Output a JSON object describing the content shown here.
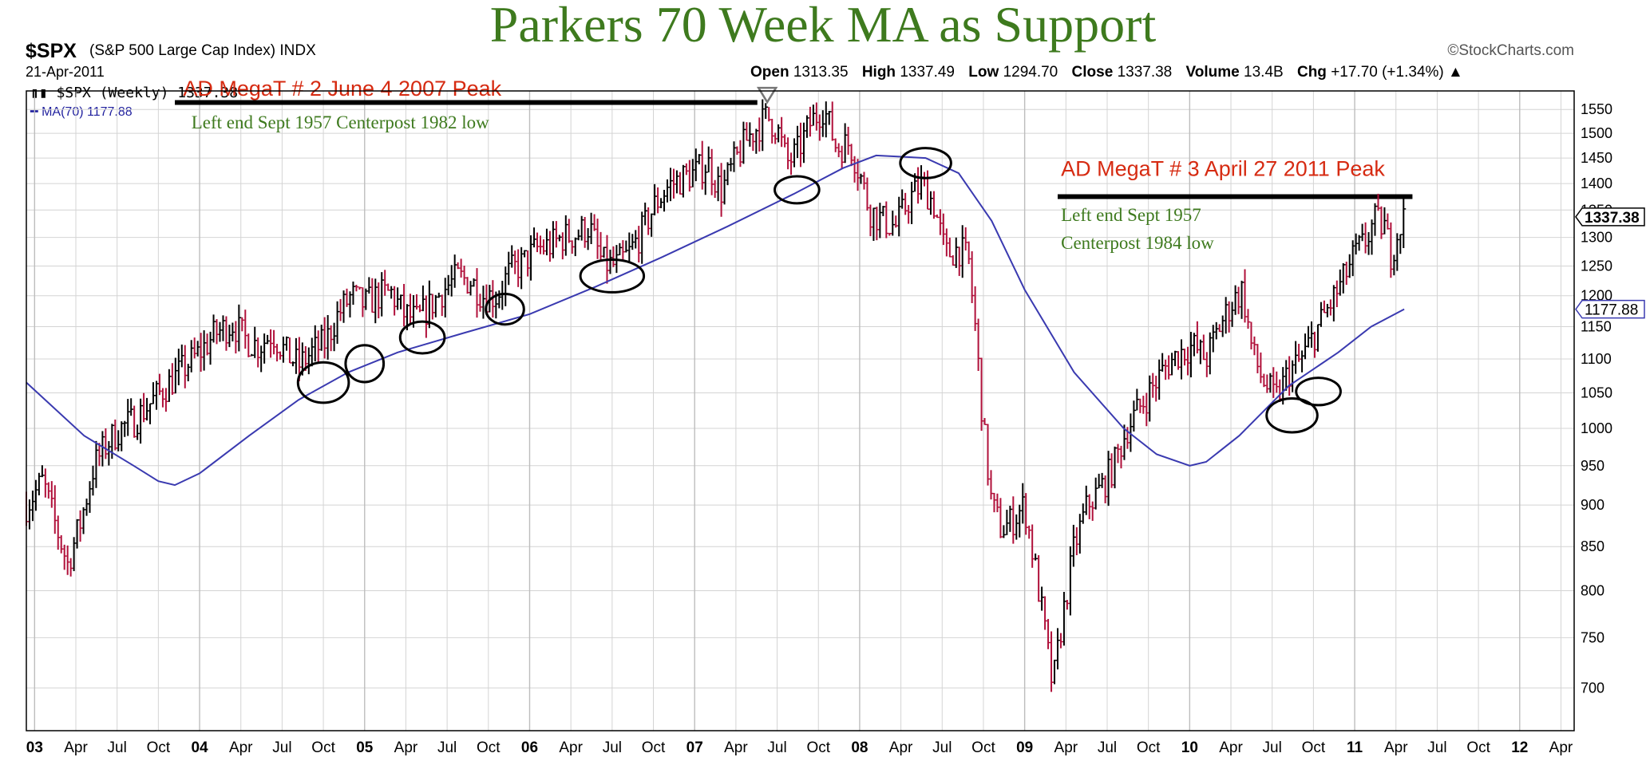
{
  "header": {
    "symbol": "$SPX",
    "name": "(S&P 500 Large Cap Index) INDX",
    "date": "21-Apr-2011",
    "brand": "©StockCharts.com",
    "open_label": "Open",
    "open": "1313.35",
    "high_label": "High",
    "high": "1337.49",
    "low_label": "Low",
    "low": "1294.70",
    "close_label": "Close",
    "close": "1337.38",
    "volume_label": "Volume",
    "volume": "13.4B",
    "chg_label": "Chg",
    "chg": "+17.70 (+1.34%)"
  },
  "legend": {
    "price": "$SPX (Weekly) 1337.38",
    "ma": "MA(70) 1177.88"
  },
  "colors": {
    "up": "#000000",
    "down": "#b0103a",
    "ma": "#3a3ab0",
    "title": "#3e7a1e",
    "annot_red": "#d62b12",
    "annot_green": "#3e7a1e",
    "grid": "#d4d4d4"
  },
  "chart_data": {
    "type": "line",
    "title": "Parkers 70 Week MA as Support",
    "x_range": [
      2002.95,
      2012.33
    ],
    "ylim": [
      660,
      1590
    ],
    "y_scale": "log",
    "y_ticks": [
      700,
      750,
      800,
      850,
      900,
      950,
      1000,
      1050,
      1100,
      1150,
      1200,
      1250,
      1300,
      1350,
      1400,
      1450,
      1500,
      1550
    ],
    "x_ticks": [
      {
        "x": 2003.0,
        "label": "03",
        "major": true
      },
      {
        "x": 2003.25,
        "label": "Apr"
      },
      {
        "x": 2003.5,
        "label": "Jul"
      },
      {
        "x": 2003.75,
        "label": "Oct"
      },
      {
        "x": 2004.0,
        "label": "04",
        "major": true
      },
      {
        "x": 2004.25,
        "label": "Apr"
      },
      {
        "x": 2004.5,
        "label": "Jul"
      },
      {
        "x": 2004.75,
        "label": "Oct"
      },
      {
        "x": 2005.0,
        "label": "05",
        "major": true
      },
      {
        "x": 2005.25,
        "label": "Apr"
      },
      {
        "x": 2005.5,
        "label": "Jul"
      },
      {
        "x": 2005.75,
        "label": "Oct"
      },
      {
        "x": 2006.0,
        "label": "06",
        "major": true
      },
      {
        "x": 2006.25,
        "label": "Apr"
      },
      {
        "x": 2006.5,
        "label": "Jul"
      },
      {
        "x": 2006.75,
        "label": "Oct"
      },
      {
        "x": 2007.0,
        "label": "07",
        "major": true
      },
      {
        "x": 2007.25,
        "label": "Apr"
      },
      {
        "x": 2007.5,
        "label": "Jul"
      },
      {
        "x": 2007.75,
        "label": "Oct"
      },
      {
        "x": 2008.0,
        "label": "08",
        "major": true
      },
      {
        "x": 2008.25,
        "label": "Apr"
      },
      {
        "x": 2008.5,
        "label": "Jul"
      },
      {
        "x": 2008.75,
        "label": "Oct"
      },
      {
        "x": 2009.0,
        "label": "09",
        "major": true
      },
      {
        "x": 2009.25,
        "label": "Apr"
      },
      {
        "x": 2009.5,
        "label": "Jul"
      },
      {
        "x": 2009.75,
        "label": "Oct"
      },
      {
        "x": 2010.0,
        "label": "10",
        "major": true
      },
      {
        "x": 2010.25,
        "label": "Apr"
      },
      {
        "x": 2010.5,
        "label": "Jul"
      },
      {
        "x": 2010.75,
        "label": "Oct"
      },
      {
        "x": 2011.0,
        "label": "11",
        "major": true
      },
      {
        "x": 2011.25,
        "label": "Apr"
      },
      {
        "x": 2011.5,
        "label": "Jul"
      },
      {
        "x": 2011.75,
        "label": "Oct"
      },
      {
        "x": 2012.0,
        "label": "12",
        "major": true
      },
      {
        "x": 2012.25,
        "label": "Apr"
      }
    ],
    "series": [
      {
        "name": "$SPX (Weekly)",
        "points": [
          [
            2002.95,
            900
          ],
          [
            2003.05,
            930
          ],
          [
            2003.12,
            880
          ],
          [
            2003.2,
            830
          ],
          [
            2003.28,
            880
          ],
          [
            2003.36,
            950
          ],
          [
            2003.44,
            980
          ],
          [
            2003.52,
            1000
          ],
          [
            2003.6,
            1010
          ],
          [
            2003.68,
            1030
          ],
          [
            2003.76,
            1050
          ],
          [
            2003.84,
            1070
          ],
          [
            2003.92,
            1090
          ],
          [
            2004.0,
            1110
          ],
          [
            2004.1,
            1140
          ],
          [
            2004.2,
            1155
          ],
          [
            2004.28,
            1130
          ],
          [
            2004.36,
            1120
          ],
          [
            2004.44,
            1140
          ],
          [
            2004.52,
            1110
          ],
          [
            2004.6,
            1090
          ],
          [
            2004.68,
            1110
          ],
          [
            2004.76,
            1125
          ],
          [
            2004.84,
            1170
          ],
          [
            2004.92,
            1200
          ],
          [
            2005.0,
            1185
          ],
          [
            2005.08,
            1200
          ],
          [
            2005.16,
            1205
          ],
          [
            2005.24,
            1170
          ],
          [
            2005.32,
            1160
          ],
          [
            2005.4,
            1185
          ],
          [
            2005.48,
            1210
          ],
          [
            2005.56,
            1230
          ],
          [
            2005.64,
            1225
          ],
          [
            2005.72,
            1200
          ],
          [
            2005.8,
            1200
          ],
          [
            2005.88,
            1240
          ],
          [
            2005.96,
            1255
          ],
          [
            2006.04,
            1280
          ],
          [
            2006.12,
            1285
          ],
          [
            2006.2,
            1300
          ],
          [
            2006.28,
            1305
          ],
          [
            2006.36,
            1320
          ],
          [
            2006.44,
            1255
          ],
          [
            2006.52,
            1250
          ],
          [
            2006.6,
            1270
          ],
          [
            2006.68,
            1310
          ],
          [
            2006.76,
            1360
          ],
          [
            2006.84,
            1395
          ],
          [
            2006.92,
            1410
          ],
          [
            2007.0,
            1420
          ],
          [
            2007.08,
            1440
          ],
          [
            2007.16,
            1385
          ],
          [
            2007.24,
            1440
          ],
          [
            2007.32,
            1490
          ],
          [
            2007.4,
            1520
          ],
          [
            2007.44,
            1535
          ],
          [
            2007.5,
            1510
          ],
          [
            2007.56,
            1440
          ],
          [
            2007.62,
            1460
          ],
          [
            2007.7,
            1520
          ],
          [
            2007.78,
            1555
          ],
          [
            2007.86,
            1470
          ],
          [
            2007.94,
            1480
          ],
          [
            2008.0,
            1420
          ],
          [
            2008.06,
            1350
          ],
          [
            2008.14,
            1330
          ],
          [
            2008.22,
            1320
          ],
          [
            2008.3,
            1370
          ],
          [
            2008.38,
            1400
          ],
          [
            2008.45,
            1360
          ],
          [
            2008.52,
            1270
          ],
          [
            2008.6,
            1280
          ],
          [
            2008.66,
            1260
          ],
          [
            2008.7,
            1150
          ],
          [
            2008.75,
            1000
          ],
          [
            2008.8,
            900
          ],
          [
            2008.86,
            870
          ],
          [
            2008.92,
            880
          ],
          [
            2009.0,
            900
          ],
          [
            2009.06,
            830
          ],
          [
            2009.12,
            760
          ],
          [
            2009.17,
            700
          ],
          [
            2009.22,
            760
          ],
          [
            2009.3,
            850
          ],
          [
            2009.38,
            900
          ],
          [
            2009.46,
            920
          ],
          [
            2009.54,
            950
          ],
          [
            2009.62,
            1000
          ],
          [
            2009.7,
            1030
          ],
          [
            2009.78,
            1060
          ],
          [
            2009.86,
            1090
          ],
          [
            2009.94,
            1110
          ],
          [
            2010.02,
            1120
          ],
          [
            2010.1,
            1100
          ],
          [
            2010.18,
            1150
          ],
          [
            2010.26,
            1190
          ],
          [
            2010.32,
            1210
          ],
          [
            2010.38,
            1110
          ],
          [
            2010.44,
            1070
          ],
          [
            2010.52,
            1040
          ],
          [
            2010.6,
            1080
          ],
          [
            2010.68,
            1100
          ],
          [
            2010.76,
            1140
          ],
          [
            2010.84,
            1180
          ],
          [
            2010.92,
            1220
          ],
          [
            2011.0,
            1270
          ],
          [
            2011.06,
            1290
          ],
          [
            2011.12,
            1330
          ],
          [
            2011.18,
            1320
          ],
          [
            2011.22,
            1270
          ],
          [
            2011.26,
            1310
          ],
          [
            2011.3,
            1337
          ]
        ]
      },
      {
        "name": "MA(70)",
        "points": [
          [
            2002.95,
            1065
          ],
          [
            2003.3,
            990
          ],
          [
            2003.6,
            950
          ],
          [
            2003.75,
            930
          ],
          [
            2003.85,
            925
          ],
          [
            2004.0,
            940
          ],
          [
            2004.3,
            990
          ],
          [
            2004.6,
            1040
          ],
          [
            2004.9,
            1080
          ],
          [
            2005.2,
            1110
          ],
          [
            2005.6,
            1140
          ],
          [
            2006.0,
            1170
          ],
          [
            2006.4,
            1215
          ],
          [
            2006.8,
            1265
          ],
          [
            2007.2,
            1320
          ],
          [
            2007.6,
            1380
          ],
          [
            2007.9,
            1430
          ],
          [
            2008.1,
            1455
          ],
          [
            2008.4,
            1450
          ],
          [
            2008.6,
            1420
          ],
          [
            2008.8,
            1330
          ],
          [
            2009.0,
            1210
          ],
          [
            2009.3,
            1080
          ],
          [
            2009.6,
            1000
          ],
          [
            2009.8,
            965
          ],
          [
            2010.0,
            950
          ],
          [
            2010.1,
            955
          ],
          [
            2010.3,
            990
          ],
          [
            2010.6,
            1060
          ],
          [
            2010.9,
            1110
          ],
          [
            2011.1,
            1150
          ],
          [
            2011.3,
            1178
          ]
        ]
      }
    ],
    "last_close_label": "1337.38",
    "last_ma_label": "1177.88",
    "annotations": [
      {
        "text": "AD MegaT # 2 June 4 2007 Peak",
        "color": "red",
        "x": 2003.9,
        "y": 1580
      },
      {
        "text": "Left end Sept 1957  Centerpost 1982 low",
        "color": "green",
        "x": 2003.95,
        "y": 1510
      },
      {
        "text": "AD MegaT # 3 April 27 2011 Peak",
        "color": "red",
        "x": 2009.22,
        "y": 1415
      },
      {
        "text": "Left end Sept 1957",
        "color": "green",
        "x": 2009.22,
        "y": 1330
      },
      {
        "text": "Centerpost 1984 low",
        "color": "green",
        "x": 2009.22,
        "y": 1280
      }
    ],
    "reference_lines": [
      {
        "x_start": 2003.85,
        "x_end": 2007.38,
        "y": 1565
      },
      {
        "x_start": 2009.2,
        "x_end": 2011.35,
        "y": 1375
      }
    ],
    "peak_marker": {
      "x": 2007.44,
      "y": 1576
    },
    "circles": [
      {
        "x": 2004.75,
        "y": 1065,
        "rx_weeks": 8,
        "ry": 30
      },
      {
        "x": 2005.0,
        "y": 1093,
        "rx_weeks": 6,
        "ry": 28
      },
      {
        "x": 2005.35,
        "y": 1133,
        "rx_weeks": 7,
        "ry": 25
      },
      {
        "x": 2005.85,
        "y": 1178,
        "rx_weeks": 6,
        "ry": 25
      },
      {
        "x": 2006.5,
        "y": 1233,
        "rx_weeks": 10,
        "ry": 28
      },
      {
        "x": 2007.62,
        "y": 1388,
        "rx_weeks": 7,
        "ry": 26
      },
      {
        "x": 2008.4,
        "y": 1440,
        "rx_weeks": 8,
        "ry": 30
      },
      {
        "x": 2010.62,
        "y": 1018,
        "rx_weeks": 8,
        "ry": 24
      },
      {
        "x": 2010.78,
        "y": 1052,
        "rx_weeks": 7,
        "ry": 20
      }
    ]
  }
}
